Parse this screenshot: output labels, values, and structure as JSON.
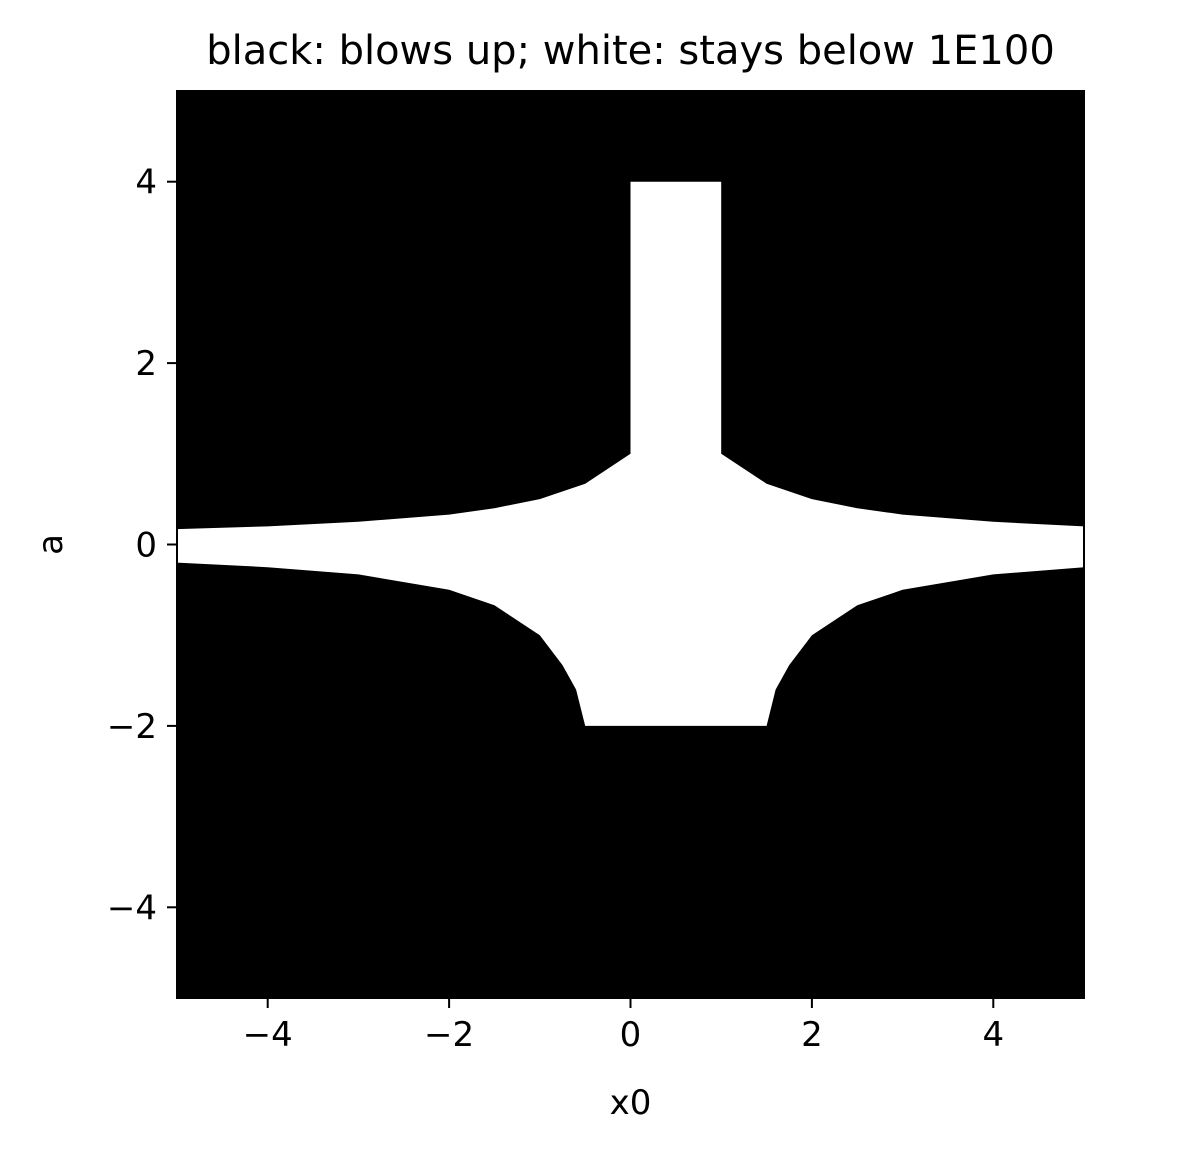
{
  "chart_data": {
    "type": "heatmap",
    "title": "black: blows up; white: stays below 1E100",
    "xlabel": "x0",
    "ylabel": "a",
    "xlim": [
      -5,
      5
    ],
    "ylim": [
      -5,
      5
    ],
    "x_ticks": [
      -4,
      -2,
      0,
      2,
      4
    ],
    "y_ticks": [
      -4,
      -2,
      0,
      2,
      4
    ],
    "x_tick_labels": [
      "−4",
      "−2",
      "0",
      "2",
      "4"
    ],
    "y_tick_labels": [
      "−4",
      "−2",
      "0",
      "2",
      "4"
    ],
    "grid": false,
    "colors": {
      "blows_up": "#000000",
      "stays_bounded": "#ffffff"
    },
    "bounded_region": {
      "description_of_boundary_points_in_data_units": "outline of the white region as (x0, a) pairs",
      "points": [
        [
          -5,
          0.17
        ],
        [
          -4,
          0.2
        ],
        [
          -3,
          0.25
        ],
        [
          -2,
          0.33
        ],
        [
          -1.5,
          0.4
        ],
        [
          -1,
          0.5
        ],
        [
          -0.5,
          0.67
        ],
        [
          0,
          1
        ],
        [
          0,
          4
        ],
        [
          1,
          4
        ],
        [
          1,
          1
        ],
        [
          1.5,
          0.67
        ],
        [
          2,
          0.5
        ],
        [
          2.5,
          0.4
        ],
        [
          3,
          0.33
        ],
        [
          4,
          0.25
        ],
        [
          5,
          0.2
        ],
        [
          5,
          -0.25
        ],
        [
          4,
          -0.33
        ],
        [
          3,
          -0.5
        ],
        [
          2.5,
          -0.67
        ],
        [
          2,
          -1
        ],
        [
          1.75,
          -1.33
        ],
        [
          1.6,
          -1.6
        ],
        [
          1.5,
          -2
        ],
        [
          -0.5,
          -2
        ],
        [
          -0.6,
          -1.6
        ],
        [
          -0.75,
          -1.33
        ],
        [
          -1,
          -1
        ],
        [
          -1.5,
          -0.67
        ],
        [
          -2,
          -0.5
        ],
        [
          -3,
          -0.33
        ],
        [
          -4,
          -0.25
        ],
        [
          -5,
          -0.2
        ]
      ]
    }
  }
}
